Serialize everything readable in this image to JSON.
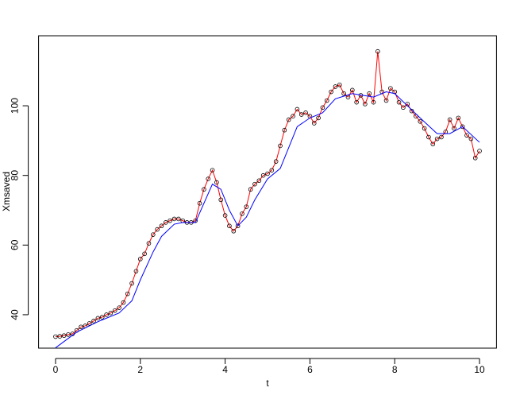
{
  "chart_data": {
    "type": "scatter",
    "xlabel": "t",
    "ylabel": "Xmsaved",
    "xlim": [
      -0.4,
      10.4
    ],
    "ylim": [
      30.4,
      120.1
    ],
    "xticks": [
      0,
      2,
      4,
      6,
      8,
      10
    ],
    "yticks": [
      40,
      60,
      80,
      100
    ],
    "x": [
      0,
      0.1,
      0.2,
      0.3,
      0.4,
      0.5,
      0.6,
      0.7,
      0.8,
      0.9,
      1,
      1.1,
      1.2,
      1.3,
      1.4,
      1.5,
      1.6,
      1.7,
      1.8,
      1.9,
      2,
      2.1,
      2.2,
      2.3,
      2.4,
      2.5,
      2.6,
      2.7,
      2.8,
      2.9,
      3,
      3.1,
      3.2,
      3.3,
      3.4,
      3.5,
      3.6,
      3.7,
      3.8,
      3.9,
      4,
      4.1,
      4.2,
      4.3,
      4.4,
      4.5,
      4.6,
      4.7,
      4.8,
      4.9,
      5,
      5.1,
      5.2,
      5.3,
      5.4,
      5.5,
      5.6,
      5.7,
      5.8,
      5.9,
      6,
      6.1,
      6.2,
      6.3,
      6.4,
      6.5,
      6.6,
      6.7,
      6.8,
      6.9,
      7,
      7.1,
      7.2,
      7.3,
      7.4,
      7.5,
      7.6,
      7.7,
      7.8,
      7.9,
      8,
      8.1,
      8.2,
      8.3,
      8.4,
      8.5,
      8.6,
      8.7,
      8.8,
      8.9,
      9,
      9.1,
      9.2,
      9.3,
      9.4,
      9.5,
      9.6,
      9.7,
      9.8,
      9.9,
      10
    ],
    "series": [
      {
        "color": "#000000",
        "line_color": "#ff0000",
        "values": [
          33.7,
          33.8,
          34.0,
          34.3,
          34.5,
          35.5,
          36.5,
          36.8,
          37.5,
          38.2,
          39.0,
          39.3,
          40.0,
          40.5,
          41.2,
          42.0,
          43.5,
          46.0,
          49.0,
          52.5,
          56.0,
          57.5,
          60.5,
          63.0,
          64.5,
          65.5,
          66.5,
          67.0,
          67.5,
          67.5,
          67.0,
          66.5,
          66.5,
          67.0,
          72.0,
          76.0,
          79.0,
          81.5,
          78.0,
          73.0,
          68.5,
          65.5,
          64.0,
          65.5,
          69.0,
          71.0,
          76.0,
          77.5,
          78.5,
          80.0,
          80.5,
          81.5,
          84.0,
          88.5,
          93.0,
          96.0,
          97.0,
          99.0,
          97.5,
          98.0,
          97.0,
          95.0,
          96.5,
          99.5,
          101.5,
          104.0,
          105.5,
          106.0,
          103.5,
          102.5,
          104.5,
          101.0,
          103.0,
          100.5,
          103.5,
          101.0,
          115.6,
          104.0,
          101.5,
          105.0,
          104.0,
          101.0,
          99.5,
          100.5,
          98.5,
          97.0,
          95.5,
          93.5,
          91.0,
          89.0,
          90.5,
          91.0,
          92.5,
          96.0,
          93.5,
          96.5,
          94.0,
          91.5,
          90.5,
          85.0,
          87.0
        ]
      },
      {
        "color": "#0000ff",
        "x": [
          0,
          0.5,
          1,
          1.5,
          1.8,
          2,
          2.3,
          2.5,
          2.8,
          3,
          3.3,
          3.5,
          3.7,
          3.9,
          4.1,
          4.3,
          4.5,
          4.7,
          5,
          5.3,
          5.5,
          5.7,
          6,
          6.3,
          6.6,
          7,
          7.5,
          7.8,
          8,
          8.3,
          8.6,
          9,
          9.3,
          9.6,
          10
        ],
        "values": [
          30.5,
          35,
          38,
          40.5,
          44,
          50,
          58,
          62.5,
          66,
          66.5,
          66.5,
          72,
          77.5,
          76,
          70,
          65.5,
          68,
          73,
          79,
          82,
          88,
          94,
          96.5,
          98,
          102,
          103.5,
          102.5,
          104,
          103.5,
          100,
          96.5,
          92,
          92,
          94,
          89.5
        ]
      }
    ]
  }
}
